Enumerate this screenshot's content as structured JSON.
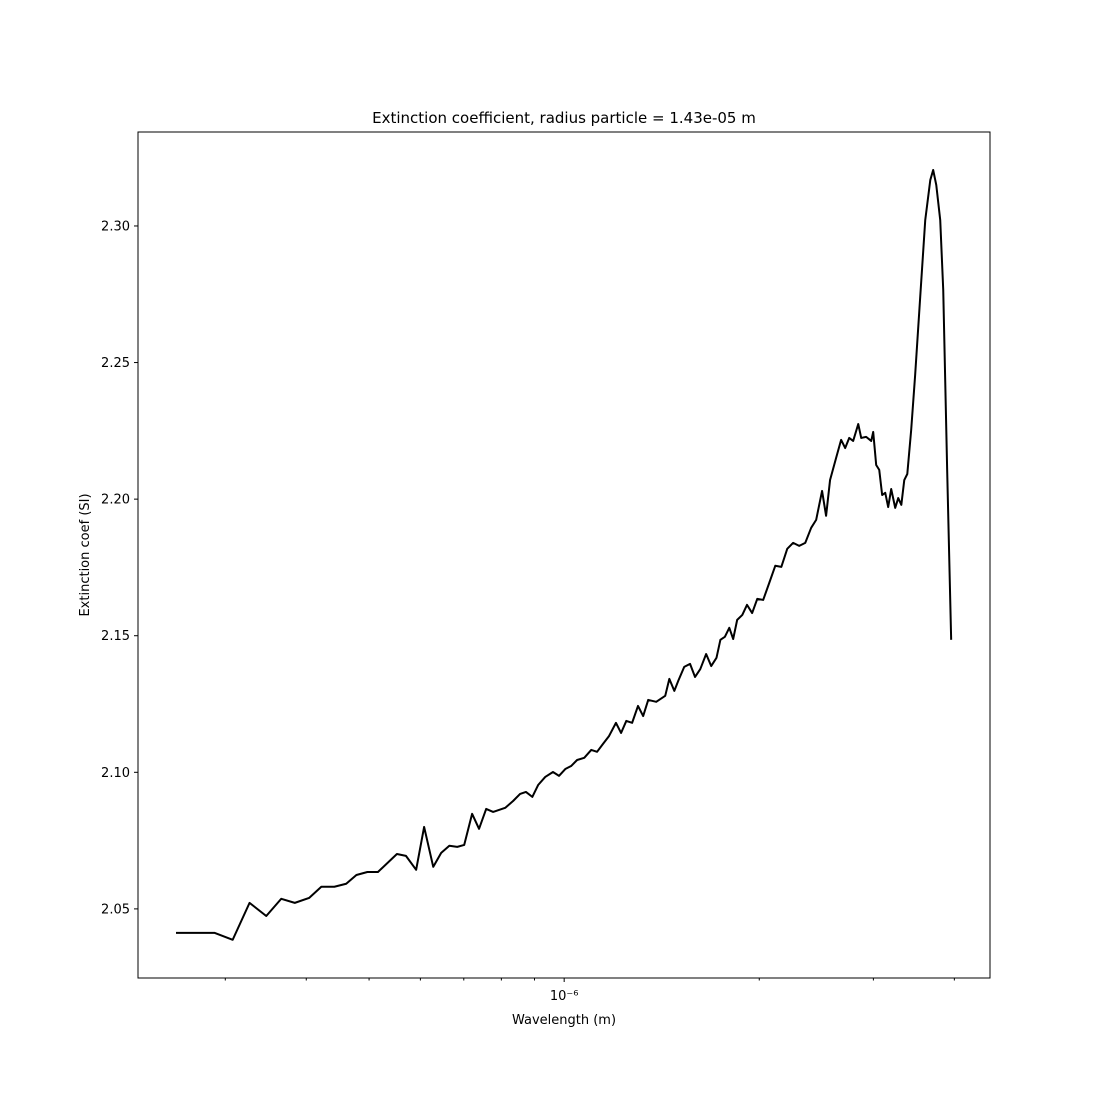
{
  "chart_data": {
    "type": "line",
    "title": "Extinction coefficient, radius particle = 1.43e-05 m",
    "xlabel": "Wavelength (m)",
    "ylabel": "Extinction coef (SI)",
    "xscale": "log",
    "color": "#000000",
    "grid": false,
    "xlim": [
      2.2e-07,
      4.54e-06
    ],
    "ylim": [
      2.0247,
      2.3344
    ],
    "xticks": [
      {
        "value": 1e-06,
        "label": "10⁻⁶"
      }
    ],
    "xminorticks": [
      3e-07,
      4e-07,
      5e-07,
      6e-07,
      7e-07,
      8e-07,
      9e-07,
      2e-06,
      3e-06,
      4e-06
    ],
    "yticks": [
      2.05,
      {
        "value": 2.1,
        "label": "2.10"
      },
      2.15,
      {
        "value": 2.2,
        "label": "2.20"
      },
      2.25,
      {
        "value": 2.3,
        "label": "2.30"
      }
    ],
    "x": [
      2.518e-07,
      2.89e-07,
      3.08e-07,
      3.27e-07,
      3.47e-07,
      3.66e-07,
      3.84e-07,
      4.04e-07,
      4.22e-07,
      4.42e-07,
      4.61e-07,
      4.78e-07,
      4.97e-07,
      5.16e-07,
      5.52e-07,
      5.7e-07,
      5.91e-07,
      6.08e-07,
      6.28e-07,
      6.46e-07,
      6.65e-07,
      6.84e-07,
      7.01e-07,
      7.21e-07,
      7.39e-07,
      7.58e-07,
      7.77e-07,
      8.11e-07,
      8.34e-07,
      8.55e-07,
      8.73e-07,
      8.93e-07,
      9.12e-07,
      9.35e-07,
      9.61e-07,
      9.82e-07,
      1.004e-06,
      1.025e-06,
      1.047e-06,
      1.074e-06,
      1.101e-06,
      1.124e-06,
      1.148e-06,
      1.173e-06,
      1.202e-06,
      1.224e-06,
      1.247e-06,
      1.273e-06,
      1.3e-06,
      1.324e-06,
      1.348e-06,
      1.387e-06,
      1.432e-06,
      1.453e-06,
      1.479e-06,
      1.5e-06,
      1.532e-06,
      1.564e-06,
      1.592e-06,
      1.622e-06,
      1.656e-06,
      1.686e-06,
      1.718e-06,
      1.742e-06,
      1.77e-06,
      1.798e-06,
      1.823e-06,
      1.849e-06,
      1.883e-06,
      1.915e-06,
      1.95e-06,
      1.986e-06,
      2.028e-06,
      2.072e-06,
      2.117e-06,
      2.163e-06,
      2.209e-06,
      2.256e-06,
      2.305e-06,
      2.355e-06,
      2.405e-06,
      2.448e-06,
      2.5e-06,
      2.536e-06,
      2.572e-06,
      2.628e-06,
      2.675e-06,
      2.714e-06,
      2.753e-06,
      2.792e-06,
      2.843e-06,
      2.873e-06,
      2.924e-06,
      2.977e-06,
      2.998e-06,
      3.03e-06,
      3.063e-06,
      3.095e-06,
      3.129e-06,
      3.162e-06,
      3.196e-06,
      3.242e-06,
      3.277e-06,
      3.313e-06,
      3.348e-06,
      3.384e-06,
      3.431e-06,
      3.48e-06,
      3.543e-06,
      3.607e-06,
      3.672e-06,
      3.71e-06,
      3.751e-06,
      3.804e-06,
      3.845e-06,
      3.899e-06,
      3.955e-06
    ],
    "values": [
      2.0412,
      2.0412,
      2.0387,
      2.0522,
      2.0474,
      2.0537,
      2.0522,
      2.054,
      2.0581,
      2.0581,
      2.0592,
      2.0624,
      2.0635,
      2.0635,
      2.0701,
      2.0694,
      2.0643,
      2.08,
      2.0654,
      2.0705,
      2.0731,
      2.0727,
      2.0734,
      2.0848,
      2.0793,
      2.0866,
      2.0855,
      2.087,
      2.0895,
      2.0921,
      2.0928,
      2.091,
      2.0954,
      2.0983,
      2.1001,
      2.0987,
      2.1012,
      2.1023,
      2.1045,
      2.1053,
      2.1082,
      2.1075,
      2.1104,
      2.1133,
      2.1181,
      2.1144,
      2.1188,
      2.1181,
      2.1243,
      2.1206,
      2.1265,
      2.1258,
      2.128,
      2.1342,
      2.1298,
      2.1335,
      2.1386,
      2.1397,
      2.1349,
      2.1378,
      2.1433,
      2.1389,
      2.1419,
      2.1485,
      2.1496,
      2.1529,
      2.1488,
      2.1558,
      2.1576,
      2.1613,
      2.1583,
      2.1635,
      2.1631,
      2.1693,
      2.1756,
      2.1752,
      2.1818,
      2.184,
      2.1829,
      2.184,
      2.1895,
      2.1924,
      2.203,
      2.1939,
      2.207,
      2.2151,
      2.2217,
      2.2187,
      2.2224,
      2.2213,
      2.2275,
      2.2224,
      2.2228,
      2.2213,
      2.2246,
      2.2125,
      2.2107,
      2.2015,
      2.2023,
      2.1971,
      2.2037,
      2.1968,
      2.2004,
      2.1979,
      2.207,
      2.2092,
      2.2253,
      2.2455,
      2.274,
      2.3022,
      2.3168,
      2.3205,
      2.315,
      2.3022,
      2.2766,
      2.2107,
      2.1485
    ]
  }
}
